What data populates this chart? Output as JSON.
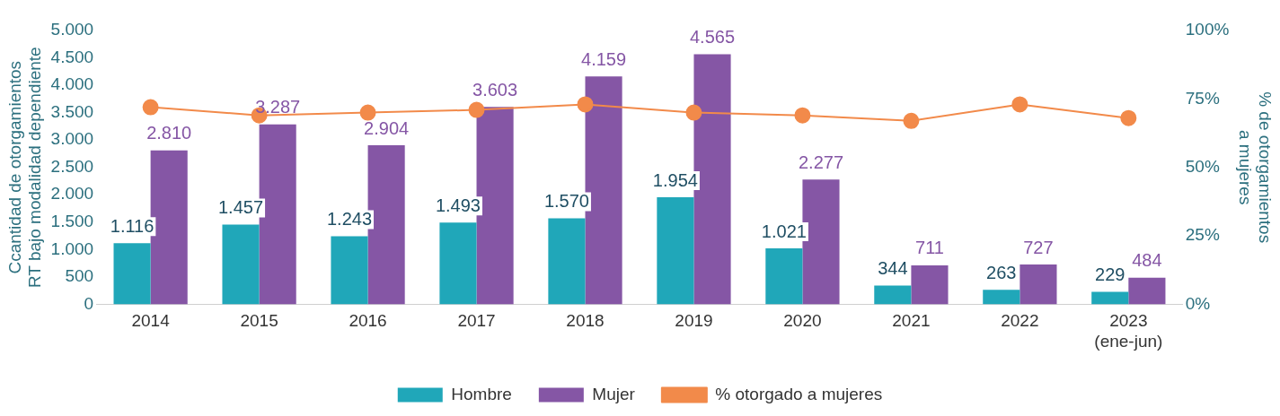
{
  "chart_data": {
    "type": "bar",
    "categories": [
      "2014",
      "2015",
      "2016",
      "2017",
      "2018",
      "2019",
      "2020",
      "2021",
      "2022",
      "2023 (ene-jun)"
    ],
    "ylabel": "Ccantidad de otorgamientos RT bajo modalidad dependiente",
    "y2label": "% de otorgamientos a mujeres",
    "ylim": [
      0,
      5000
    ],
    "yticks": [
      0,
      {
        "value": 500,
        "label": "500"
      },
      {
        "value": 1000,
        "label": "1.000"
      },
      {
        "value": 1500,
        "label": "1.500"
      },
      {
        "value": 2000,
        "label": "2.000"
      },
      {
        "value": 2500,
        "label": "2.500"
      },
      {
        "value": 3000,
        "label": "3.000"
      },
      {
        "value": 3500,
        "label": "3.500"
      },
      {
        "value": 4000,
        "label": "4.000"
      },
      {
        "value": 4500,
        "label": "4.500"
      },
      {
        "value": 5000,
        "label": "5.000"
      }
    ],
    "y2lim": [
      0,
      100
    ],
    "y2ticks": [
      {
        "value": 0,
        "label": "0%"
      },
      {
        "value": 25,
        "label": "25%"
      },
      {
        "value": 50,
        "label": "50%"
      },
      {
        "value": 75,
        "label": "75%"
      },
      {
        "value": 100,
        "label": "100%"
      }
    ],
    "series": [
      {
        "name": "Hombre",
        "color": "#20a7b9",
        "values": [
          1116,
          1457,
          1243,
          1493,
          1570,
          1954,
          1021,
          344,
          263,
          229
        ],
        "value_labels": [
          "1.116",
          "1.457",
          "1.243",
          "1.493",
          "1.570",
          "1.954",
          "1.021",
          "344",
          "263",
          "229"
        ]
      },
      {
        "name": "Mujer",
        "color": "#8556a5",
        "values": [
          2810,
          3287,
          2904,
          3603,
          4159,
          4565,
          2277,
          711,
          727,
          484
        ],
        "value_labels": [
          "2.810",
          "3.287",
          "2.904",
          "3.603",
          "4.159",
          "4.565",
          "2.277",
          "711",
          "727",
          "484"
        ]
      },
      {
        "name": "% otorgado a mujeres",
        "type": "line",
        "axis": "y2",
        "color": "#f28a4a",
        "values": [
          72,
          69,
          70,
          71,
          73,
          70,
          69,
          67,
          73,
          68
        ]
      }
    ],
    "marker": "circle",
    "line_style": "solid",
    "grid": false,
    "legend": "bottom"
  }
}
